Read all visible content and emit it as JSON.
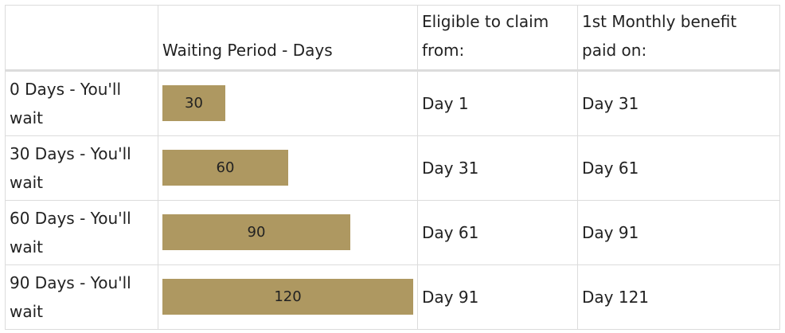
{
  "table": {
    "headers": [
      "",
      "Waiting Period - Days",
      "Eligible to claim from:",
      "1st Monthly benefit paid on:"
    ],
    "bar_color": "#ae9861",
    "bar_max": 120,
    "rows": [
      {
        "label": "0 Days - You'll wait",
        "bar_value": 30,
        "bar_label": "30",
        "eligible": "Day 1",
        "first_paid": "Day 31"
      },
      {
        "label": "30 Days - You'll wait",
        "bar_value": 60,
        "bar_label": "60",
        "eligible": "Day 31",
        "first_paid": "Day 61"
      },
      {
        "label": "60 Days - You'll wait",
        "bar_value": 90,
        "bar_label": "90",
        "eligible": "Day 61",
        "first_paid": "Day 91"
      },
      {
        "label": "90 Days - You'll wait",
        "bar_value": 120,
        "bar_label": "120",
        "eligible": "Day 91",
        "first_paid": "Day 121"
      }
    ]
  }
}
